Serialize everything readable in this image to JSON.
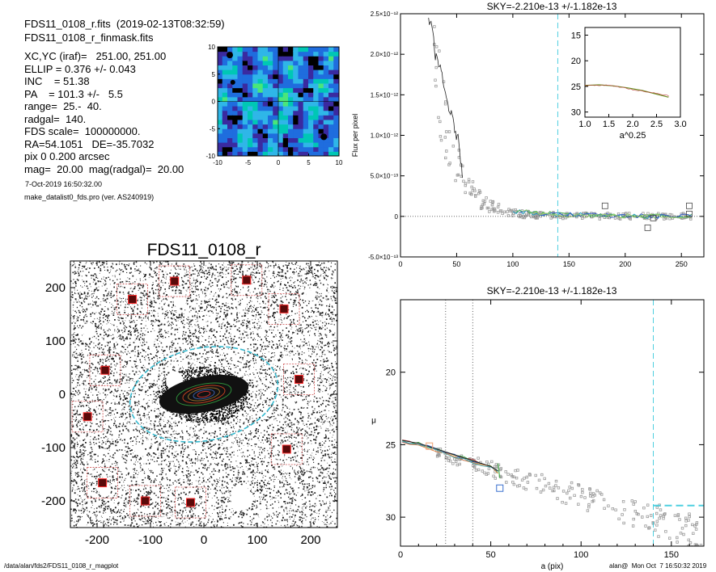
{
  "header": {
    "line1": "FDS11_0108_r.fits  (2019-02-13T08:32:59)",
    "line2": "FDS11_0108_r_finmask.fits",
    "params": [
      "XC,YC (iraf)=   251.00, 251.00",
      "ELLIP = 0.376 +/- 0.043",
      "INC    = 51.38",
      "PA    = 101.3 +/-   5.5",
      "range=  25.-  40.",
      "radgal=  140.",
      "FDS scale=  100000000.",
      "RA=54.1051   DE=-35.7032",
      "pix 0 0.200 arcsec",
      "mag=  20.00  mag(radgal)=  20.00"
    ],
    "date": "7-Oct-2019 16:50:32.00",
    "program": "make_datalist0_fds.pro (ver. AS240919)"
  },
  "footer": {
    "left": "/data/alan/fds2/FDS11_0108_r_magplot",
    "right": "alan@  Mon Oct  7 16:50:32 2019"
  },
  "chart_data": [
    {
      "type": "heatmap",
      "xlim": [
        -10,
        10
      ],
      "ylim": [
        -10,
        10
      ],
      "xticks": [
        "-10",
        "-5",
        "0",
        "5",
        "10"
      ],
      "yticks": [
        "10",
        "5",
        "0",
        "-5",
        "-10"
      ],
      "colors": [
        "#000000",
        "#3a2aa0",
        "#1f6dde",
        "#2fb6e8",
        "#49e67a",
        "#00c7b5"
      ]
    },
    {
      "type": "image",
      "title": "FDS11_0108_r",
      "xlim": [
        -250,
        250
      ],
      "ylim": [
        -250,
        250
      ],
      "xticks": [
        "-200",
        "-100",
        "0",
        "100",
        "200"
      ],
      "yticks": [
        "200",
        "100",
        "0",
        "-100",
        "-200"
      ],
      "ellipse": {
        "a": 140,
        "b": 87,
        "pa_deg": 101.3
      },
      "masked_boxes": [
        [
          -134,
          178
        ],
        [
          -55,
          212
        ],
        [
          80,
          214
        ],
        [
          150,
          160
        ],
        [
          -185,
          45
        ],
        [
          178,
          28
        ],
        [
          -218,
          -42
        ],
        [
          155,
          -103
        ],
        [
          -190,
          -166
        ],
        [
          -110,
          -200
        ],
        [
          -25,
          -203
        ]
      ]
    },
    {
      "type": "line",
      "title": "SKY=-2.210e-13 +/-1.182e-13",
      "ylabel": "Flux per pixel",
      "xlim": [
        0,
        270
      ],
      "ylim": [
        -5e-13,
        2.5e-12
      ],
      "xticks": [
        "0",
        "50",
        "100",
        "150",
        "200",
        "250"
      ],
      "yticks": [
        "-5.0×10⁻¹³",
        "0",
        "5.0×10⁻¹³",
        "1.0×10⁻¹²",
        "1.5×10⁻¹²",
        "2.0×10⁻¹²",
        "2.5×10⁻¹²"
      ],
      "ytick_values": [
        -5e-13,
        0,
        5e-13,
        1e-12,
        1.5e-12,
        2e-12,
        2.5e-12
      ],
      "vline": 140,
      "profile": [
        [
          25,
          2.45e-12
        ],
        [
          28,
          2.3e-12
        ],
        [
          31,
          2e-12
        ],
        [
          34,
          1.9e-12
        ],
        [
          37,
          1.7e-12
        ],
        [
          40,
          1.5e-12
        ],
        [
          43,
          1.35e-12
        ],
        [
          46,
          1.2e-12
        ],
        [
          49,
          1.05e-12
        ],
        [
          52,
          9e-13
        ],
        [
          55,
          5.5e-13
        ]
      ],
      "sky_level": 0,
      "squares": [
        [
          182,
          1.3e-13
        ],
        [
          220,
          -1.4e-13
        ],
        [
          257,
          1.3e-13
        ],
        [
          257,
          3e-14
        ],
        [
          225,
          -2e-14
        ]
      ],
      "inset": {
        "xlabel": "a^0.25",
        "xlim": [
          1.0,
          3.0
        ],
        "ylim": [
          31,
          13.5
        ],
        "xticks": [
          "1.0",
          "1.5",
          "2.0",
          "2.5",
          "3.0"
        ],
        "yticks": [
          "15",
          "20",
          "25",
          "30"
        ],
        "curve": [
          [
            1.0,
            24.8
          ],
          [
            1.3,
            24.7
          ],
          [
            1.6,
            24.9
          ],
          [
            1.9,
            25.3
          ],
          [
            2.2,
            25.8
          ],
          [
            2.5,
            26.5
          ],
          [
            2.75,
            27.1
          ]
        ]
      }
    },
    {
      "type": "scatter",
      "title": "SKY=-2.210e-13 +/-1.182e-13",
      "xlabel": "a (pix)",
      "ylabel": "μ",
      "xlim": [
        0,
        168
      ],
      "ylim": [
        32,
        15
      ],
      "xticks": [
        "0",
        "50",
        "100",
        "150"
      ],
      "yticks": [
        "20",
        "25",
        "30"
      ],
      "vlines_dotted": [
        25,
        40
      ],
      "vline_dashed": 140,
      "sky_mu": 29.2,
      "profile": [
        [
          1,
          24.7
        ],
        [
          5,
          24.8
        ],
        [
          10,
          24.9
        ],
        [
          15,
          25.1
        ],
        [
          20,
          25.3
        ],
        [
          25,
          25.5
        ],
        [
          30,
          25.7
        ],
        [
          35,
          25.9
        ],
        [
          40,
          26.1
        ],
        [
          45,
          26.3
        ],
        [
          50,
          26.5
        ],
        [
          54,
          26.8
        ]
      ],
      "squares": [
        [
          55,
          28.0
        ],
        [
          16,
          25.1
        ]
      ]
    }
  ]
}
